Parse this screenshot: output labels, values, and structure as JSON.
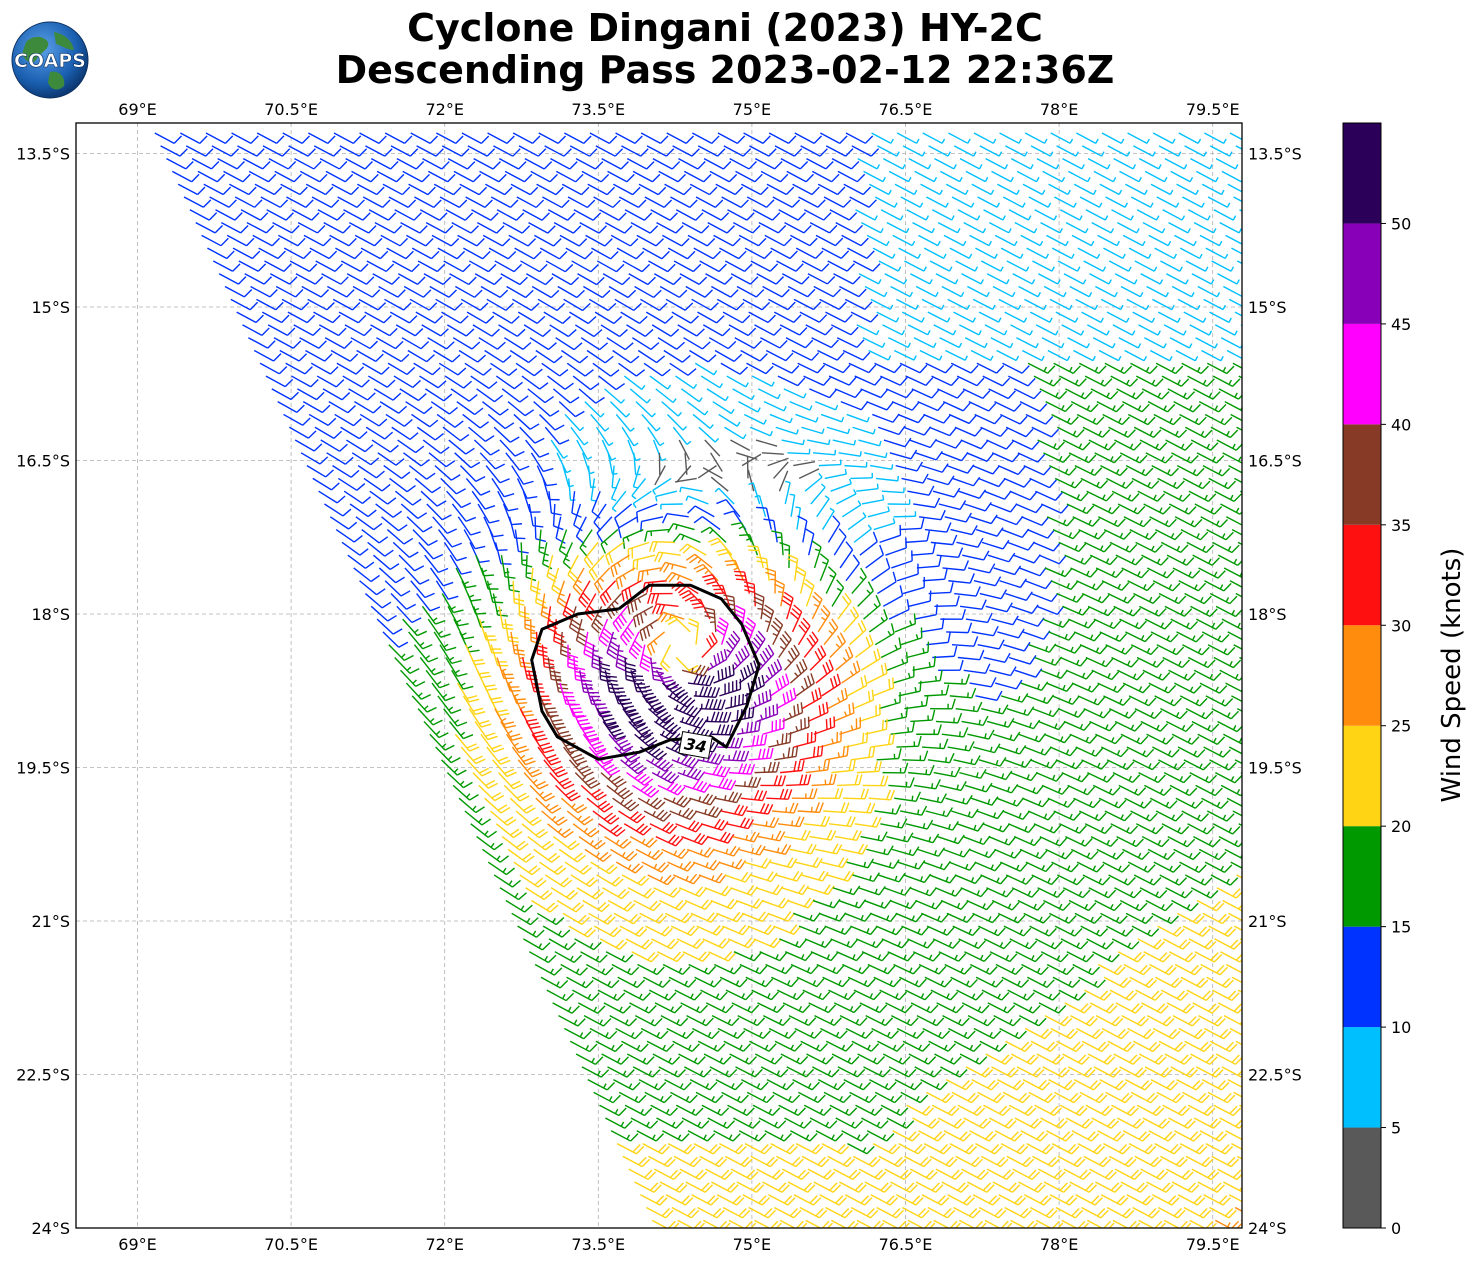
{
  "title": {
    "line1": "Cyclone Dingani (2023) HY-2C",
    "line2": "Descending Pass 2023-02-12 22:36Z"
  },
  "logo": {
    "text": "COAPS",
    "icon": "globe-logo-icon"
  },
  "map": {
    "lon_ticks": [
      {
        "value": 69.0,
        "label": "69°E"
      },
      {
        "value": 70.5,
        "label": "70.5°E"
      },
      {
        "value": 72.0,
        "label": "72°E"
      },
      {
        "value": 73.5,
        "label": "73.5°E"
      },
      {
        "value": 75.0,
        "label": "75°E"
      },
      {
        "value": 76.5,
        "label": "76.5°E"
      },
      {
        "value": 78.0,
        "label": "78°E"
      },
      {
        "value": 79.5,
        "label": "79.5°E"
      }
    ],
    "lat_ticks": [
      {
        "value": -13.5,
        "label": "13.5°S"
      },
      {
        "value": -15.0,
        "label": "15°S"
      },
      {
        "value": -16.5,
        "label": "16.5°S"
      },
      {
        "value": -18.0,
        "label": "18°S"
      },
      {
        "value": -19.5,
        "label": "19.5°S"
      },
      {
        "value": -21.0,
        "label": "21°S"
      },
      {
        "value": -22.5,
        "label": "22.5°S"
      },
      {
        "value": -24.0,
        "label": "24°S"
      }
    ],
    "lon_range": [
      68.4,
      79.8
    ],
    "lat_range": [
      -24.0,
      -13.2
    ],
    "grid": true,
    "cyclone_center": {
      "lon": 74.3,
      "lat": -18.4
    },
    "swath_left_edge": [
      [
        69.2,
        -13.5
      ],
      [
        74.0,
        -24.0
      ]
    ],
    "contour_34kt": {
      "label": "34",
      "points": [
        [
          73.7,
          -17.95
        ],
        [
          74.0,
          -17.72
        ],
        [
          74.4,
          -17.72
        ],
        [
          74.7,
          -17.85
        ],
        [
          74.9,
          -18.1
        ],
        [
          75.07,
          -18.5
        ],
        [
          74.95,
          -18.9
        ],
        [
          74.75,
          -19.3
        ],
        [
          74.6,
          -19.2
        ],
        [
          74.2,
          -19.23
        ],
        [
          73.9,
          -19.35
        ],
        [
          73.5,
          -19.42
        ],
        [
          73.1,
          -19.2
        ],
        [
          72.95,
          -18.95
        ],
        [
          72.85,
          -18.45
        ],
        [
          72.95,
          -18.15
        ],
        [
          73.3,
          -18.0
        ],
        [
          73.7,
          -17.95
        ]
      ]
    }
  },
  "colorbar": {
    "label": "Wind Speed (knots)",
    "ticks": [
      "0",
      "5",
      "10",
      "15",
      "20",
      "25",
      "30",
      "35",
      "40",
      "45",
      "50"
    ],
    "bins": [
      {
        "min": 0,
        "color": "#595959"
      },
      {
        "min": 5,
        "color": "#00bfff"
      },
      {
        "min": 10,
        "color": "#0033ff"
      },
      {
        "min": 15,
        "color": "#009900"
      },
      {
        "min": 20,
        "color": "#ffd414"
      },
      {
        "min": 25,
        "color": "#ff8c0d"
      },
      {
        "min": 30,
        "color": "#ff1010"
      },
      {
        "min": 35,
        "color": "#873b26"
      },
      {
        "min": 40,
        "color": "#ff00ff"
      },
      {
        "min": 45,
        "color": "#8800b8"
      },
      {
        "min": 50,
        "color": "#2a0058"
      }
    ]
  },
  "chart_data": {
    "type": "wind-barb-map",
    "title": "Cyclone Dingani (2023) HY-2C Descending Pass 2023-02-12 22:36Z",
    "legend": "right colorbar",
    "value_label": "Wind Speed (knots)",
    "contour_level_kt": 34
  }
}
